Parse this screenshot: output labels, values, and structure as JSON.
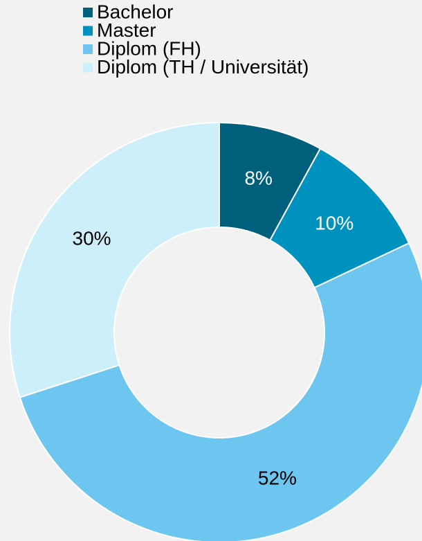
{
  "chart_data": {
    "type": "donut",
    "categories": [
      "Bachelor",
      "Master",
      "Diplom (FH)",
      "Diplom (TH / Universität)"
    ],
    "values": [
      8,
      10,
      52,
      30
    ],
    "value_labels": [
      "8%",
      "10%",
      "52%",
      "30%"
    ],
    "colors": [
      "#005f7a",
      "#0092be",
      "#6dc6ef",
      "#cdeffa"
    ],
    "legend": "top"
  }
}
